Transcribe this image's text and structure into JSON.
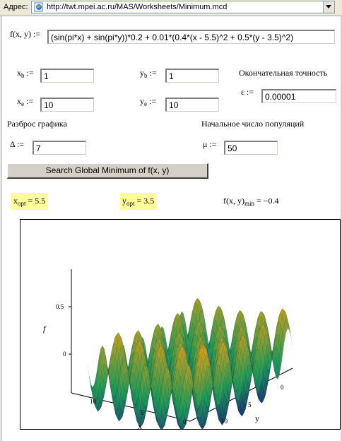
{
  "address_bar": {
    "label": "Адрес:",
    "url": "http://twt.mpei.ac.ru/MAS/Worksheets/Minimum.mcd"
  },
  "function": {
    "label": "f(x, y) :=",
    "expression": "(sin(pi*x) + sin(pi*y))*0.2 + 0.01*(0.4*(x - 5.5)^2 + 0.5*(y - 3.5)^2)"
  },
  "params": {
    "xb": {
      "var": "x",
      "sub": "b",
      "assign": ":=",
      "value": "1"
    },
    "yb": {
      "var": "y",
      "sub": "b",
      "assign": ":=",
      "value": "1"
    },
    "xe": {
      "var": "x",
      "sub": "e",
      "assign": ":=",
      "value": "10"
    },
    "ye": {
      "var": "y",
      "sub": "e",
      "assign": ":=",
      "value": "10"
    },
    "precision": {
      "title": "Окончательная точность",
      "var": "ε",
      "assign": ":=",
      "value": "0.00001"
    },
    "spread": {
      "title": "Разброс графика",
      "var": "Δ",
      "assign": ":=",
      "value": "7"
    },
    "population": {
      "title": "Начальное число популяций",
      "var": "μ",
      "assign": ":=",
      "value": "50"
    }
  },
  "search_button": {
    "label": "Search Global Minimum of f(x, y)"
  },
  "results": {
    "xopt": {
      "var": "x",
      "sub": "opt",
      "rest": " = 5.5"
    },
    "yopt": {
      "var": "y",
      "sub": "opt",
      "rest": " = 3.5"
    },
    "fmin": {
      "var": "f(x, y)",
      "sub": "min",
      "rest": " = −0.4"
    }
  },
  "plot": {
    "type": "surface3d",
    "z_ticks": [
      "0.5",
      "0"
    ],
    "x_ticks": [
      "10",
      "5",
      "0"
    ],
    "y_ticks": [
      "0",
      "5",
      "10"
    ],
    "x_label": "x",
    "y_label": "y",
    "z_label": "f",
    "colors": {
      "low": "#1a1f7a",
      "mid": "#1e9a5a",
      "high": "#c9a020",
      "peak": "#b8402a"
    }
  }
}
